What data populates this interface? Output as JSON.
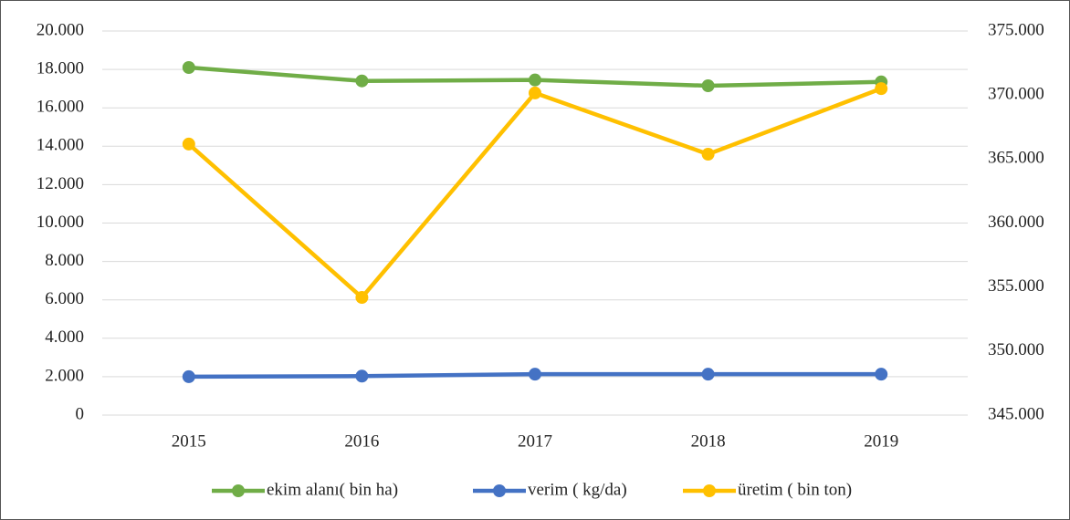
{
  "chart_data": {
    "type": "line",
    "categories": [
      "2015",
      "2016",
      "2017",
      "2018",
      "2019"
    ],
    "series": [
      {
        "name": "ekim alanı( bin ha)",
        "color": "#70ad47",
        "values": [
          18100,
          17400,
          17450,
          17150,
          17350
        ]
      },
      {
        "name": "verim ( kg/da)",
        "color": "#4472c4",
        "values": [
          2000,
          2030,
          2130,
          2130,
          2130
        ]
      },
      {
        "name": "üretim ( bin ton)",
        "color": "#ffc000",
        "axis": "y2",
        "values": [
          366170,
          354190,
          370160,
          365380,
          370500
        ]
      }
    ],
    "ylim": [
      0,
      20000
    ],
    "yticks": [
      0,
      {
        "value": 2000,
        "label": "2.000"
      },
      {
        "value": 4000,
        "label": "4.000"
      },
      {
        "value": 6000,
        "label": "6.000"
      },
      {
        "value": 8000,
        "label": "8.000"
      },
      {
        "value": 10000,
        "label": "10.000"
      },
      {
        "value": 12000,
        "label": "12.000"
      },
      {
        "value": 14000,
        "label": "14.000"
      },
      {
        "value": 16000,
        "label": "16.000"
      },
      {
        "value": 18000,
        "label": "18.000"
      },
      {
        "value": 20000,
        "label": "20.000"
      }
    ],
    "y2lim": [
      345000,
      375000
    ],
    "y2ticks": [
      {
        "value": 345000,
        "label": "345.000"
      },
      {
        "value": 350000,
        "label": "350.000"
      },
      {
        "value": 355000,
        "label": "355.000"
      },
      {
        "value": 360000,
        "label": "360.000"
      },
      {
        "value": 365000,
        "label": "365.000"
      },
      {
        "value": 370000,
        "label": "370.000"
      },
      {
        "value": 375000,
        "label": "375.000"
      }
    ],
    "grid": true,
    "legend": "bottom"
  }
}
